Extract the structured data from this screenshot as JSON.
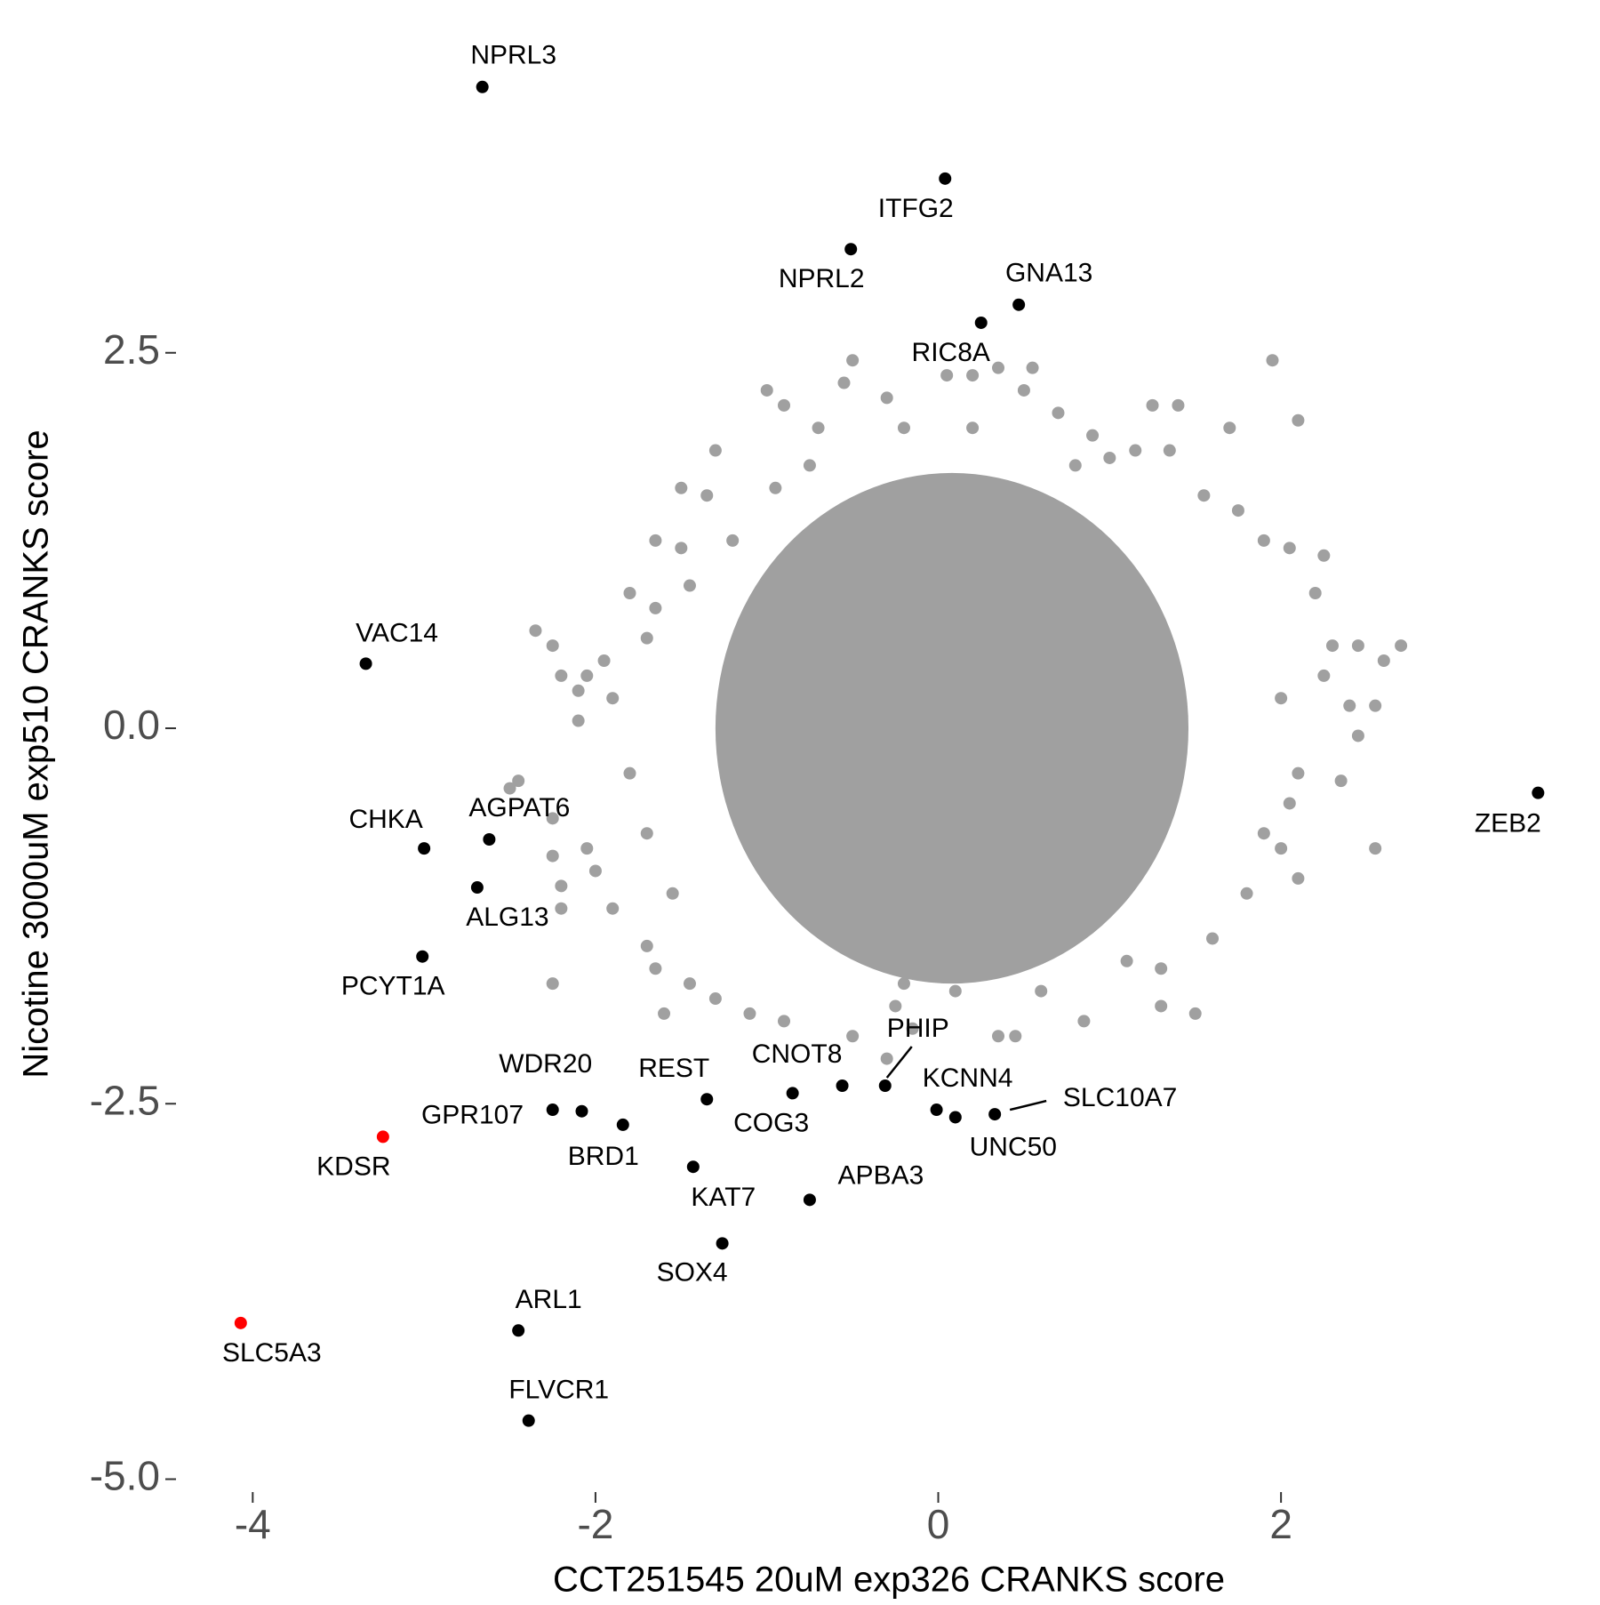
{
  "chart_data": {
    "type": "scatter",
    "x_label": "CCT251545 20uM exp326 CRANKS score",
    "y_label": "Nicotine 3000uM exp510 CRANKS score",
    "xlim": [
      -4.4,
      3.7
    ],
    "ylim": [
      -5.1,
      4.45
    ],
    "xticks": [
      -4,
      -2,
      0,
      2
    ],
    "yticks": [
      2.5,
      {
        "value": 0,
        "label": "0.0"
      },
      -2.5,
      {
        "value": -5,
        "label": "-5.0"
      }
    ],
    "grid": false,
    "series": [
      {
        "color": "#a0a0a0",
        "x": [
          2.7,
          2.6,
          2.45,
          2.3,
          2.4,
          2.55,
          2.45,
          2.25,
          2.0,
          2.35,
          2.55,
          2.1,
          2.05,
          2.0,
          2.1,
          1.95,
          2.1,
          1.9,
          2.05,
          2.25,
          1.75,
          2.2,
          1.55,
          1.4,
          1.25,
          1.7,
          0.55,
          0.9,
          1.35,
          1.3,
          1.5,
          1.3,
          0.85,
          0.45,
          0.35,
          -0.15,
          -0.25,
          -0.5,
          -0.3,
          -0.9,
          -1.1,
          -1.3,
          -1.6,
          -1.65,
          -1.45,
          -1.7,
          -1.9,
          -2.0,
          -2.2,
          -2.2,
          -2.25,
          -2.45,
          -2.2,
          -2.1,
          -2.05,
          -1.95,
          -1.9,
          -2.1,
          -2.25,
          -2.35,
          -1.65,
          -1.7,
          -1.65,
          -1.5,
          -1.35,
          -1.2,
          -1.3,
          -0.95,
          -1.0,
          -0.75,
          -0.9,
          -0.7,
          -0.55,
          -0.5,
          -0.3,
          -0.2,
          0.05,
          0.2,
          0.2,
          0.35,
          0.5,
          0.7,
          0.8,
          1.0,
          1.15,
          -0.2,
          0.1,
          0.6,
          1.1,
          1.6,
          1.8,
          1.9,
          -1.7,
          -1.8,
          -1.8,
          -1.5,
          -2.05,
          -2.25,
          -1.55,
          -1.45,
          -2.25,
          -2.5
        ],
        "values": [
          0.55,
          0.45,
          0.55,
          0.55,
          0.15,
          0.15,
          -0.05,
          0.35,
          0.2,
          -0.35,
          -0.8,
          -0.3,
          -0.5,
          -0.8,
          -1.0,
          2.45,
          2.05,
          1.25,
          1.2,
          1.15,
          1.45,
          0.9,
          1.55,
          2.15,
          2.15,
          2.0,
          2.4,
          1.95,
          1.85,
          -1.85,
          -1.9,
          -1.6,
          -1.95,
          -2.05,
          -2.05,
          -2.0,
          -1.85,
          -2.05,
          -2.2,
          -1.95,
          -1.9,
          -1.8,
          -1.9,
          -1.6,
          -1.7,
          -1.45,
          -1.2,
          -0.95,
          -1.05,
          -1.2,
          -0.6,
          -0.35,
          0.35,
          0.05,
          0.35,
          0.45,
          0.2,
          0.25,
          0.55,
          0.65,
          0.8,
          0.6,
          1.25,
          1.6,
          1.55,
          1.25,
          1.85,
          1.6,
          2.25,
          1.75,
          2.15,
          2.0,
          2.3,
          2.45,
          2.2,
          2.0,
          2.35,
          2.0,
          2.35,
          2.4,
          2.25,
          2.1,
          1.75,
          1.8,
          1.85,
          -1.7,
          -1.75,
          -1.75,
          -1.55,
          -1.4,
          -1.1,
          -0.7,
          -0.7,
          -0.3,
          0.9,
          1.2,
          -0.8,
          -0.85,
          -1.1,
          0.95,
          -1.7,
          -0.4
        ]
      },
      {
        "color": "#000000",
        "labels": [
          "NPRL3",
          "ITFG2",
          "NPRL2",
          "GNA13",
          "RIC8A",
          "VAC14",
          "ZEB2",
          "CHKA",
          "AGPAT6",
          "ALG13",
          "PCYT1A",
          "WDR20",
          "GPR107",
          "BRD1",
          "REST",
          "COG3",
          "CNOT8",
          "PHIP",
          "KCNN4",
          "UNC50",
          "SLC10A7",
          "KAT7",
          "APBA3",
          "SOX4",
          "ARL1",
          "FLVCR1"
        ],
        "x": [
          -2.66,
          0.04,
          -0.51,
          0.47,
          0.25,
          -3.34,
          3.5,
          -3.0,
          -2.62,
          -2.69,
          -3.01,
          -2.25,
          -2.08,
          -1.84,
          -1.35,
          -0.85,
          -0.56,
          -0.31,
          -0.01,
          0.1,
          0.33,
          -1.43,
          -0.75,
          -1.26,
          -2.45,
          -2.39
        ],
        "values": [
          4.27,
          3.66,
          3.19,
          2.82,
          2.7,
          0.43,
          -0.43,
          -0.8,
          -0.74,
          -1.06,
          -1.52,
          -2.54,
          -2.55,
          -2.64,
          -2.47,
          -2.43,
          -2.38,
          -2.38,
          -2.54,
          -2.59,
          -2.57,
          -2.92,
          -3.14,
          -3.43,
          -4.01,
          -4.61
        ]
      },
      {
        "color": "#ff0000",
        "labels": [
          "KDSR",
          "SLC5A3"
        ],
        "x": [
          -3.24,
          -4.07
        ],
        "values": [
          -2.72,
          -3.96
        ]
      }
    ]
  }
}
